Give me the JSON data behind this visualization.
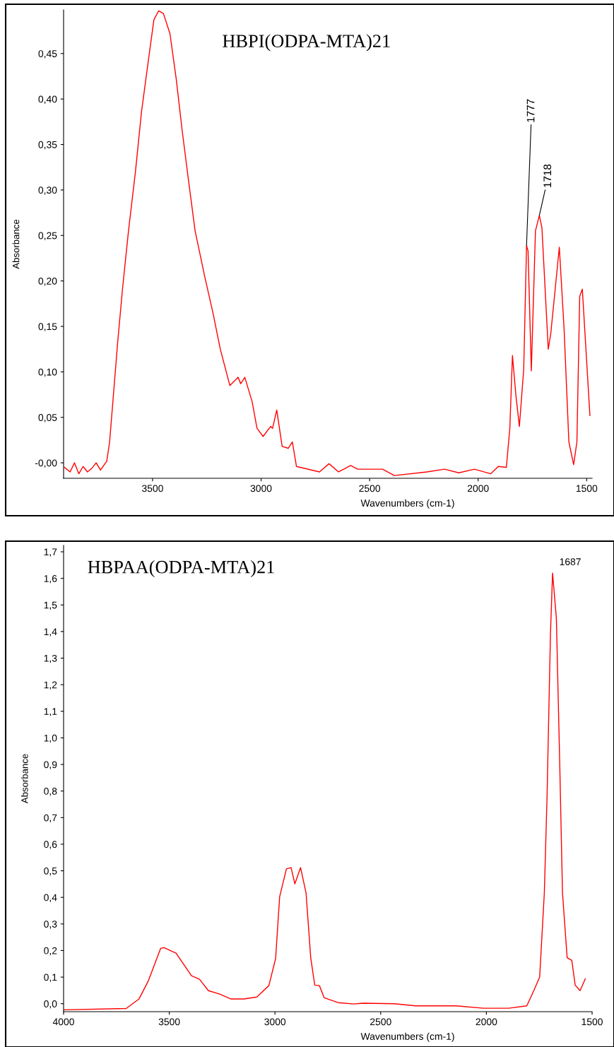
{
  "chart_data": [
    {
      "type": "line",
      "title": "HBPI(ODPA-MTA)21",
      "xlabel": "Wavenumbers (cm-1)",
      "ylabel": "Absorbance",
      "xlim": [
        3910,
        1475
      ],
      "ylim": [
        -0.017,
        0.498
      ],
      "xticks": [
        3500,
        3000,
        2500,
        2000,
        1500
      ],
      "yticks": [
        {
          "value": 0,
          "label": "-0,00"
        },
        {
          "value": 0.05,
          "label": "0,05"
        },
        {
          "value": 0.1,
          "label": "0,10"
        },
        {
          "value": 0.15,
          "label": "0,15"
        },
        {
          "value": 0.2,
          "label": "0,20"
        },
        {
          "value": 0.25,
          "label": "0,25"
        },
        {
          "value": 0.3,
          "label": "0,30"
        },
        {
          "value": 0.35,
          "label": "0,35"
        },
        {
          "value": 0.4,
          "label": "0,40"
        },
        {
          "value": 0.45,
          "label": "0,45"
        }
      ],
      "annotations": [
        {
          "text": "1777",
          "x": 1777,
          "y": 0.239
        },
        {
          "text": "1718",
          "x": 1718,
          "y": 0.272
        }
      ],
      "series": [
        {
          "color": "#ff0000",
          "x": [
            3906,
            3880,
            3860,
            3840,
            3820,
            3800,
            3780,
            3760,
            3740,
            3711,
            3698,
            3683,
            3661,
            3639,
            3611,
            3579,
            3551,
            3523,
            3494,
            3472,
            3450,
            3420,
            3391,
            3363,
            3332,
            3304,
            3260,
            3222,
            3188,
            3144,
            3106,
            3094,
            3075,
            3041,
            3019,
            2991,
            2956,
            2947,
            2928,
            2903,
            2875,
            2856,
            2837,
            2731,
            2687,
            2643,
            2587,
            2555,
            2440,
            2386,
            2236,
            2155,
            2089,
            2017,
            1942,
            1907,
            1870,
            1854,
            1842,
            1826,
            1810,
            1790,
            1777,
            1770,
            1755,
            1736,
            1718,
            1706,
            1677,
            1665,
            1626,
            1604,
            1582,
            1560,
            1545,
            1532,
            1520,
            1485
          ],
          "values": [
            -0.005,
            -0.01,
            0.0,
            -0.012,
            -0.004,
            -0.01,
            -0.006,
            0.0,
            -0.008,
            0.002,
            0.023,
            0.067,
            0.132,
            0.19,
            0.255,
            0.32,
            0.386,
            0.436,
            0.487,
            0.497,
            0.494,
            0.472,
            0.422,
            0.364,
            0.306,
            0.255,
            0.205,
            0.165,
            0.125,
            0.085,
            0.094,
            0.087,
            0.094,
            0.067,
            0.038,
            0.029,
            0.04,
            0.038,
            0.058,
            0.018,
            0.016,
            0.023,
            -0.004,
            -0.01,
            -0.001,
            -0.01,
            -0.003,
            -0.007,
            -0.007,
            -0.014,
            -0.01,
            -0.007,
            -0.011,
            -0.007,
            -0.012,
            -0.004,
            -0.005,
            0.038,
            0.118,
            0.074,
            0.04,
            0.103,
            0.239,
            0.233,
            0.101,
            0.255,
            0.272,
            0.258,
            0.125,
            0.143,
            0.237,
            0.147,
            0.023,
            -0.002,
            0.023,
            0.183,
            0.191,
            0.052
          ]
        }
      ]
    },
    {
      "type": "line",
      "title": "HBPAA(ODPA-MTA)21",
      "xlabel": "Wavenumbers (cm-1)",
      "ylabel": "Absorbance",
      "xlim": [
        4000,
        1500
      ],
      "ylim": [
        -0.03,
        1.724
      ],
      "xticks": [
        4000,
        3500,
        3000,
        2500,
        2000,
        1500
      ],
      "yticks": [
        {
          "value": 0,
          "label": "0,0"
        },
        {
          "value": 0.1,
          "label": "0,1"
        },
        {
          "value": 0.2,
          "label": "0,2"
        },
        {
          "value": 0.3,
          "label": "0,3"
        },
        {
          "value": 0.4,
          "label": "0,4"
        },
        {
          "value": 0.5,
          "label": "0,5"
        },
        {
          "value": 0.6,
          "label": "0,6"
        },
        {
          "value": 0.7,
          "label": "0,7"
        },
        {
          "value": 0.8,
          "label": "0,8"
        },
        {
          "value": 0.9,
          "label": "0,9"
        },
        {
          "value": 1.0,
          "label": "1,0"
        },
        {
          "value": 1.1,
          "label": "1,1"
        },
        {
          "value": 1.2,
          "label": "1,2"
        },
        {
          "value": 1.3,
          "label": "1,3"
        },
        {
          "value": 1.4,
          "label": "1,4"
        },
        {
          "value": 1.5,
          "label": "1,5"
        },
        {
          "value": 1.6,
          "label": "1,6"
        },
        {
          "value": 1.7,
          "label": "1,7"
        }
      ],
      "annotations": [
        {
          "text": "1687",
          "x": 1687,
          "y": 1.62
        }
      ],
      "series": [
        {
          "color": "#ff0000",
          "x": [
            4000,
            3704,
            3643,
            3599,
            3541,
            3525,
            3468,
            3395,
            3357,
            3315,
            3261,
            3210,
            3146,
            3086,
            3029,
            2997,
            2978,
            2946,
            2924,
            2906,
            2879,
            2853,
            2831,
            2812,
            2790,
            2767,
            2701,
            2627,
            2583,
            2436,
            2334,
            2143,
            2013,
            1895,
            1809,
            1777,
            1748,
            1726,
            1713,
            1697,
            1687,
            1669,
            1653,
            1640,
            1618,
            1596,
            1580,
            1557,
            1532
          ],
          "values": [
            -0.023,
            -0.018,
            0.018,
            0.086,
            0.208,
            0.211,
            0.19,
            0.105,
            0.092,
            0.049,
            0.036,
            0.018,
            0.018,
            0.025,
            0.068,
            0.17,
            0.402,
            0.507,
            0.512,
            0.451,
            0.512,
            0.416,
            0.173,
            0.07,
            0.068,
            0.022,
            0.004,
            -0.001,
            0.002,
            0.0,
            -0.008,
            -0.008,
            -0.017,
            -0.017,
            -0.008,
            0.047,
            0.1,
            0.416,
            0.781,
            1.39,
            1.62,
            1.45,
            0.9,
            0.416,
            0.173,
            0.163,
            0.07,
            0.049,
            0.094
          ]
        }
      ]
    }
  ]
}
